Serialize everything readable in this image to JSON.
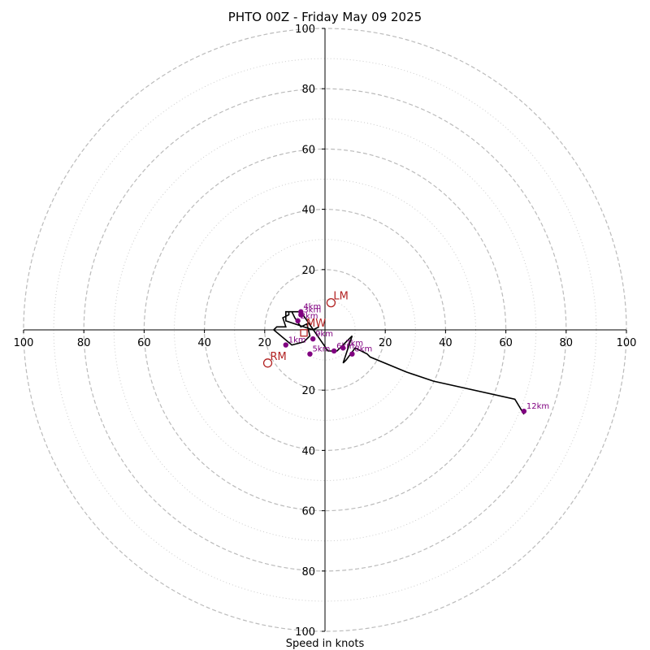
{
  "chart_data": {
    "type": "scatter",
    "title": "PHTO 00Z - Friday May 09 2025",
    "xlabel": "Speed in knots",
    "xlim": [
      -100,
      100
    ],
    "ylim": [
      -100,
      100
    ],
    "major_rings": [
      20,
      40,
      60,
      80,
      100
    ],
    "minor_rings": [
      10,
      30,
      50,
      70,
      90
    ],
    "x_ticks": [
      -100,
      -80,
      -60,
      -40,
      -20,
      20,
      40,
      60,
      80,
      100
    ],
    "x_tick_labels": [
      "100",
      "80",
      "60",
      "40",
      "20",
      "20",
      "40",
      "60",
      "80",
      "100"
    ],
    "y_ticks": [
      100,
      80,
      60,
      40,
      20,
      -20,
      -40,
      -60,
      -80,
      -100
    ],
    "y_tick_labels": [
      "100",
      "80",
      "60",
      "40",
      "20",
      "20",
      "40",
      "60",
      "80",
      "100"
    ],
    "hodograph_trace": {
      "u": [
        -2,
        -4,
        -10,
        -13,
        -13,
        -11,
        -10,
        -8,
        -6,
        -5,
        -7,
        -11,
        -17,
        -16,
        -13,
        -14,
        -12,
        -12,
        -10,
        -8,
        1,
        4,
        9,
        6,
        7,
        10,
        14,
        15,
        27,
        36,
        63,
        66
      ],
      "v": [
        1,
        0,
        2,
        3,
        6,
        6,
        4,
        1,
        2,
        -2,
        -4,
        -5,
        0,
        1,
        1,
        4,
        5,
        6,
        6,
        6,
        -7,
        -7,
        -2,
        -11,
        -10,
        -6,
        -8,
        -9,
        -14,
        -17,
        -23,
        -28
      ],
      "color": "#000000"
    },
    "height_points": {
      "labels": [
        "1km",
        "2km",
        "3km",
        "4km",
        "5km",
        "6km",
        "7km",
        "8km",
        "9km",
        "12km"
      ],
      "u": [
        -13,
        -9,
        -8,
        -8,
        -5,
        3,
        6,
        9,
        -4,
        66
      ],
      "v": [
        -5,
        3,
        5,
        6,
        -8,
        -7,
        -6,
        -8,
        -3,
        -27
      ],
      "color": "#800080"
    },
    "storm_motion": [
      {
        "label": "LM",
        "u": 2,
        "v": 9
      },
      {
        "label": "RM",
        "u": -19,
        "v": -11
      },
      {
        "label": "MW",
        "u": -7,
        "v": 0
      }
    ],
    "mean_wind_marker": {
      "u": -7,
      "v": -1
    },
    "motion_color": "#b22222",
    "ring_color": "#bbbbbb",
    "grid": true
  }
}
